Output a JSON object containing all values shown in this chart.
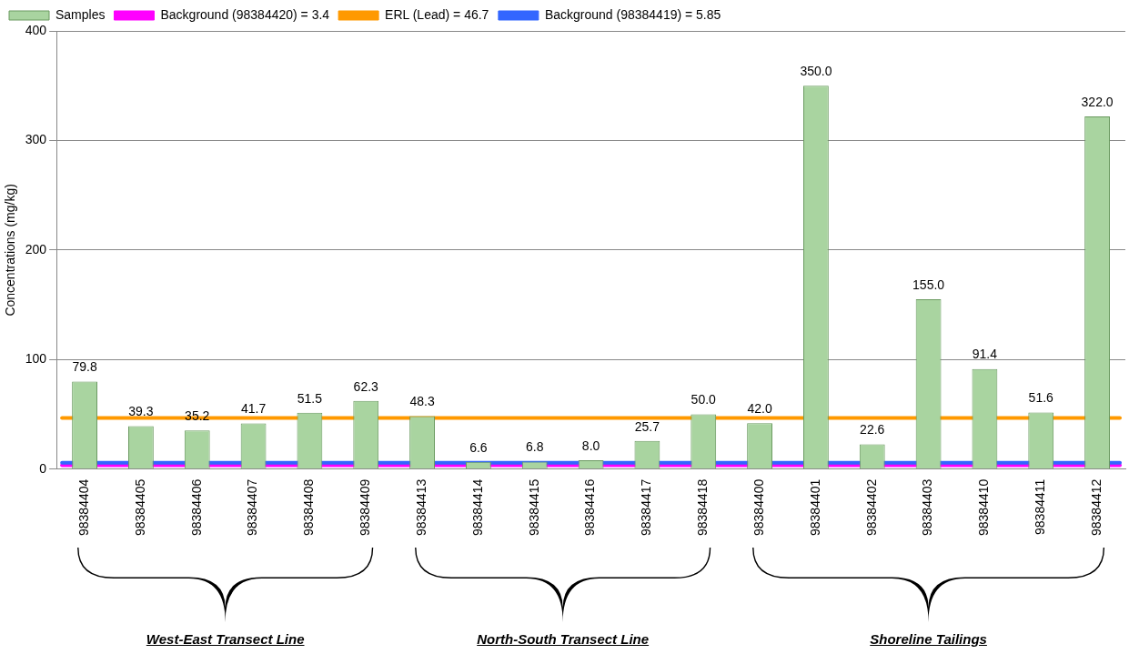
{
  "chart_data": {
    "type": "bar",
    "ylabel": "Concentrations (mg/kg)",
    "categories": [
      "98384404",
      "98384405",
      "98384406",
      "98384407",
      "98384408",
      "98384409",
      "98384413",
      "98384414",
      "98384415",
      "98384416",
      "98384417",
      "98384418",
      "98384400",
      "98384401",
      "98384402",
      "98384403",
      "98384410",
      "98384411",
      "98384412"
    ],
    "series": [
      {
        "name": "Samples",
        "color": "#a9d4a0",
        "values": [
          79.8,
          39.3,
          35.2,
          41.7,
          51.5,
          62.3,
          48.3,
          6.6,
          6.8,
          8.0,
          25.7,
          50.0,
          42.0,
          350.0,
          22.6,
          155.0,
          91.4,
          51.6,
          322.0
        ],
        "value_labels": [
          "79.8",
          "39.3",
          "35.2",
          "41.7",
          "51.5",
          "62.3",
          "48.3",
          "6.6",
          "6.8",
          "8.0",
          "25.7",
          "50.0",
          "42.0",
          "350.0",
          "22.6",
          "155.0",
          "91.4",
          "51.6",
          "322.0"
        ]
      }
    ],
    "ref_lines": [
      {
        "axis": "y",
        "value": 3.4,
        "label": "Background (98384420) = 3.4",
        "color": "#ff00ff"
      },
      {
        "axis": "y",
        "value": 46.7,
        "label": "ERL (Lead) = 46.7",
        "color": "#ff9900"
      },
      {
        "axis": "y",
        "value": 5.85,
        "label": "Background (98384419) = 5.85",
        "color": "#3366ff"
      }
    ],
    "ylim": [
      0,
      400
    ],
    "yticks": [
      0,
      100,
      200,
      300,
      400
    ],
    "grid": "y",
    "legend": "top left",
    "annotations": [
      "West-East Transect Line",
      "North-South Transect Line",
      "Shoreline Tailings"
    ]
  }
}
